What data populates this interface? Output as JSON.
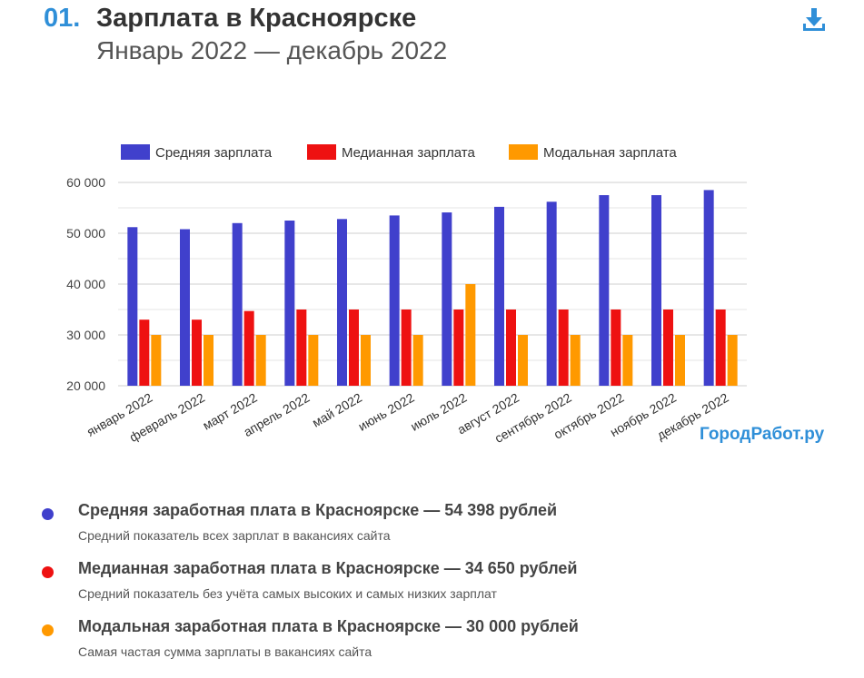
{
  "header": {
    "number": "01.",
    "title": "Зарплата в Красноярске",
    "subtitle": "Январь 2022 — декабрь 2022"
  },
  "brand": "ГородРабот.ру",
  "colors": {
    "accent": "#2f8fd8",
    "average": "#4040cc",
    "median": "#ee1111",
    "modal": "#ff9900"
  },
  "chart_data": {
    "type": "bar",
    "categories": [
      "январь 2022",
      "февраль 2022",
      "март 2022",
      "апрель 2022",
      "май 2022",
      "июнь 2022",
      "июль 2022",
      "август 2022",
      "сентябрь 2022",
      "октябрь 2022",
      "ноябрь 2022",
      "декабрь 2022"
    ],
    "series": [
      {
        "name": "Средняя зарплата",
        "color": "#4040cc",
        "values": [
          51200,
          50800,
          52000,
          52500,
          52800,
          53500,
          54100,
          55200,
          56200,
          57500,
          57500,
          58500
        ]
      },
      {
        "name": "Медианная зарплата",
        "color": "#ee1111",
        "values": [
          33000,
          33000,
          34700,
          35000,
          35000,
          35000,
          35000,
          35000,
          35000,
          35000,
          35000,
          35000
        ]
      },
      {
        "name": "Модальная зарплата",
        "color": "#ff9900",
        "values": [
          30000,
          30000,
          30000,
          30000,
          30000,
          30000,
          40000,
          30000,
          30000,
          30000,
          30000,
          30000
        ]
      }
    ],
    "ylim": [
      20000,
      60000
    ],
    "yticks": [
      "20 000",
      "30 000",
      "40 000",
      "50 000",
      "60 000"
    ],
    "grid": true,
    "legend": "top"
  },
  "stats": [
    {
      "title": "Средняя заработная плата в Красноярске — 54 398 рублей",
      "desc": "Средний показатель всех зарплат в вакансиях сайта",
      "color": "#4040cc"
    },
    {
      "title": "Медианная заработная плата в Красноярске — 34 650 рублей",
      "desc": "Средний показатель без учёта самых высоких и самых низких зарплат",
      "color": "#ee1111"
    },
    {
      "title": "Модальная заработная плата в Красноярске — 30 000 рублей",
      "desc": "Самая частая сумма зарплаты в вакансиях сайта",
      "color": "#ff9900"
    }
  ]
}
